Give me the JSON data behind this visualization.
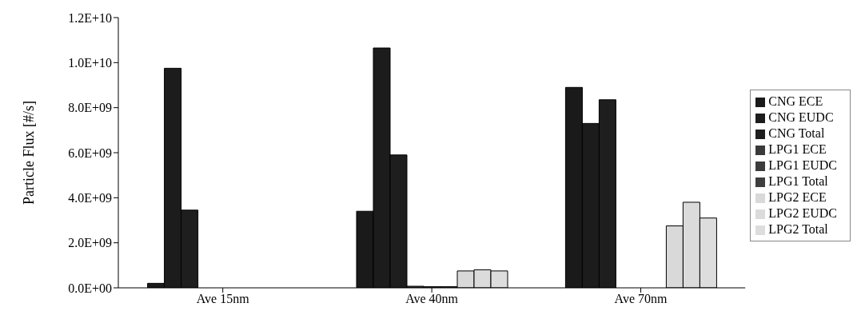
{
  "chart_data": {
    "type": "bar",
    "ylabel": "Particle Flux [#/s]",
    "categories": [
      "Ave 15nm",
      "Ave 40nm",
      "Ave 70nm"
    ],
    "series": [
      {
        "name": "CNG ECE",
        "color": "#1a1a1a",
        "values": [
          200000000,
          3400000000,
          8900000000
        ]
      },
      {
        "name": "CNG EUDC",
        "color": "#1c1c1c",
        "values": [
          9750000000,
          10650000000,
          7300000000
        ]
      },
      {
        "name": "CNG Total",
        "color": "#1e1e1e",
        "values": [
          3450000000,
          5900000000,
          8350000000
        ]
      },
      {
        "name": "LPG1 ECE",
        "color": "#3a3a3a",
        "values": [
          0,
          70000000,
          0
        ]
      },
      {
        "name": "LPG1 EUDC",
        "color": "#3c3c3c",
        "values": [
          0,
          50000000,
          0
        ]
      },
      {
        "name": "LPG1 Total",
        "color": "#3e3e3e",
        "values": [
          0,
          50000000,
          0
        ]
      },
      {
        "name": "LPG2 ECE",
        "color": "#d9d9d9",
        "values": [
          0,
          750000000,
          2750000000
        ]
      },
      {
        "name": "LPG2 EUDC",
        "color": "#dbdbdb",
        "values": [
          0,
          800000000,
          3800000000
        ]
      },
      {
        "name": "LPG2 Total",
        "color": "#dddddd",
        "values": [
          0,
          750000000,
          3100000000
        ]
      }
    ],
    "ylim": [
      0,
      12000000000
    ],
    "yticks": [
      {
        "value": 0,
        "label": "0.0E+00"
      },
      {
        "value": 2000000000,
        "label": "2.0E+09"
      },
      {
        "value": 4000000000,
        "label": "4.0E+09"
      },
      {
        "value": 6000000000,
        "label": "6.0E+09"
      },
      {
        "value": 8000000000,
        "label": "8.0E+09"
      },
      {
        "value": 10000000000,
        "label": "1.0E+10"
      },
      {
        "value": 12000000000,
        "label": "1.2E+10"
      }
    ],
    "grid": false,
    "legend": "right"
  }
}
